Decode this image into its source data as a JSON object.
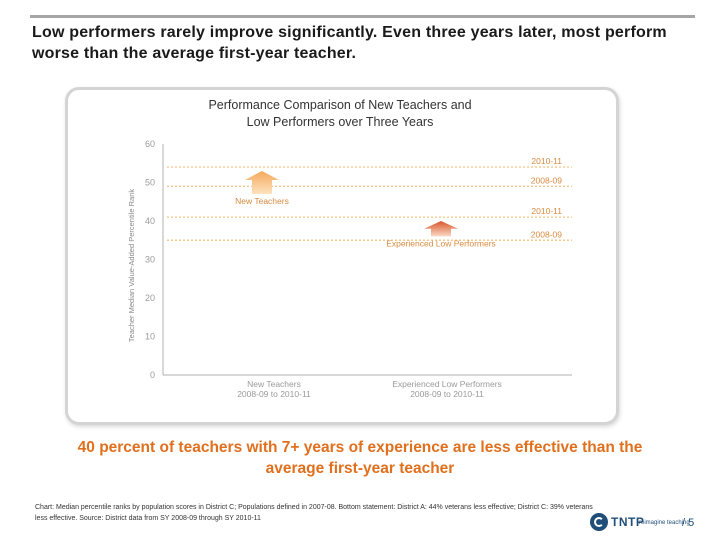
{
  "headline": "Low performers rarely improve significantly. Even three years later, most perform worse than the average first-year teacher.",
  "callout": "40 percent of teachers with 7+ years of experience are less effective than the average first-year teacher",
  "footnote": "Chart: Median percentile ranks by population scores in District C; Populations defined in 2007-08. Bottom statement: District A: 44% veterans less effective; District C: 39% veterans less effective. Source: District data from SY 2008-09 through SY 2010-11",
  "logo": {
    "text": "TNTP",
    "tagline": "reimagine teaching"
  },
  "page_number": "/ 5",
  "colors": {
    "accent": "#e0701e",
    "line": "#f3c98d",
    "arrow_light": "#f9cc8f",
    "arrow_dark": "#d8542a",
    "axis": "#b0b0b0"
  },
  "chart_data": {
    "type": "line",
    "title_line1": "Performance Comparison of New Teachers and",
    "title_line2": "Low Performers over Three Years",
    "ylabel": "Teacher Median Value-Added Percentile Rank",
    "ylim": [
      0,
      60
    ],
    "yticks": [
      "60",
      "50",
      "40",
      "30",
      "20",
      "10",
      "0"
    ],
    "categories": [
      {
        "name": "New Teachers",
        "period": "2008-09 to 2010-11"
      },
      {
        "name": "Experienced Low Performers",
        "period": "2008-09 to 2010-11"
      }
    ],
    "reference_lines": [
      {
        "label": "2010-11",
        "value": 54
      },
      {
        "label": "2008-09",
        "value": 49
      },
      {
        "label": "2010-11",
        "value": 41
      },
      {
        "label": "2008-09",
        "value": 35
      }
    ],
    "arrows": [
      {
        "label": "New Teachers",
        "from": 47,
        "to": 53,
        "slot": 0
      },
      {
        "label": "Experienced Low Performers",
        "from": 36,
        "to": 40,
        "slot": 1
      }
    ]
  }
}
